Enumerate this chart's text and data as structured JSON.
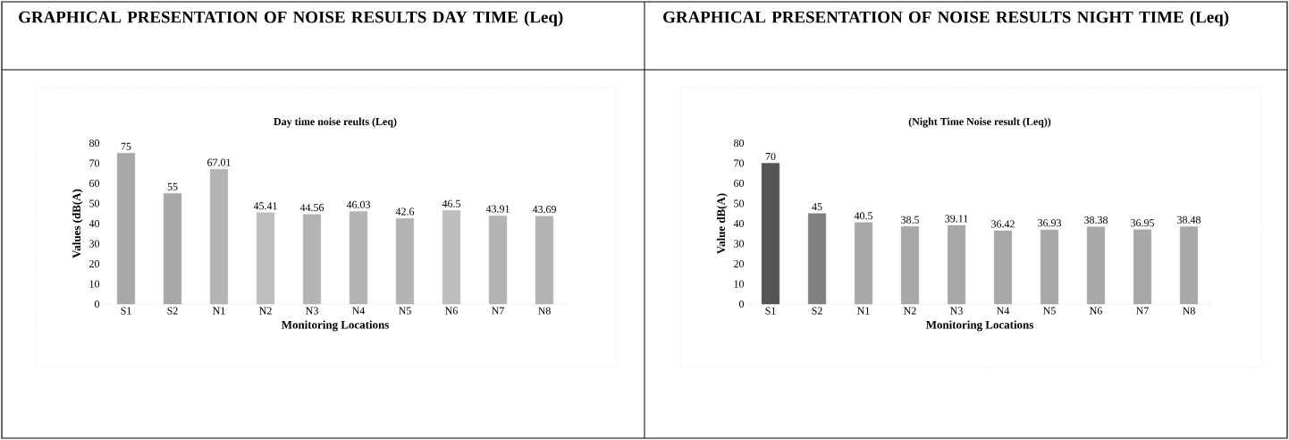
{
  "chart_data": [
    {
      "type": "bar",
      "title": "GRAPHICAL PRESENTATION OF NOISE RESULTS DAY TIME (Leq)",
      "subtitle": "Day time noise reults (Leq)",
      "xlabel": "Monitoring Locations",
      "ylabel": "Values  (dB(A)",
      "categories": [
        "S1",
        "S2",
        "N1",
        "N2",
        "N3",
        "N4",
        "N5",
        "N6",
        "N7",
        "N8"
      ],
      "values": [
        75,
        55,
        67.01,
        45.41,
        44.56,
        46.03,
        42.6,
        46.5,
        43.91,
        43.69
      ],
      "colors": [
        "#a8a8a8",
        "#a8a8a8",
        "#b4b4b4",
        "#bdbdbd",
        "#b4b4b4",
        "#b4b4b4",
        "#b4b4b4",
        "#bdbdbd",
        "#b4b4b4",
        "#b4b4b4"
      ],
      "ylim": [
        0,
        80
      ],
      "yticks": [
        0,
        10,
        20,
        30,
        40,
        50,
        60,
        70,
        80
      ],
      "data_labels": true
    },
    {
      "type": "bar",
      "title": "GRAPHICAL PRESENTATION OF NOISE RESULTS NIGHT TIME (Leq)",
      "subtitle": "(Night Time Noise result (Leq))",
      "xlabel": "Monitoring Locations",
      "ylabel": "Value dB(A)",
      "categories": [
        "S1",
        "S2",
        "N1",
        "N2",
        "N3",
        "N4",
        "N5",
        "N6",
        "N7",
        "N8"
      ],
      "values": [
        70,
        45,
        40.5,
        38.5,
        39.11,
        36.42,
        36.93,
        38.38,
        36.95,
        38.48
      ],
      "colors": [
        "#555555",
        "#808080",
        "#a8a8a8",
        "#a8a8a8",
        "#a8a8a8",
        "#a8a8a8",
        "#a8a8a8",
        "#a8a8a8",
        "#a8a8a8",
        "#a8a8a8"
      ],
      "ylim": [
        0,
        80
      ],
      "yticks": [
        0,
        10,
        20,
        30,
        40,
        50,
        60,
        70,
        80
      ],
      "data_labels": true
    }
  ]
}
